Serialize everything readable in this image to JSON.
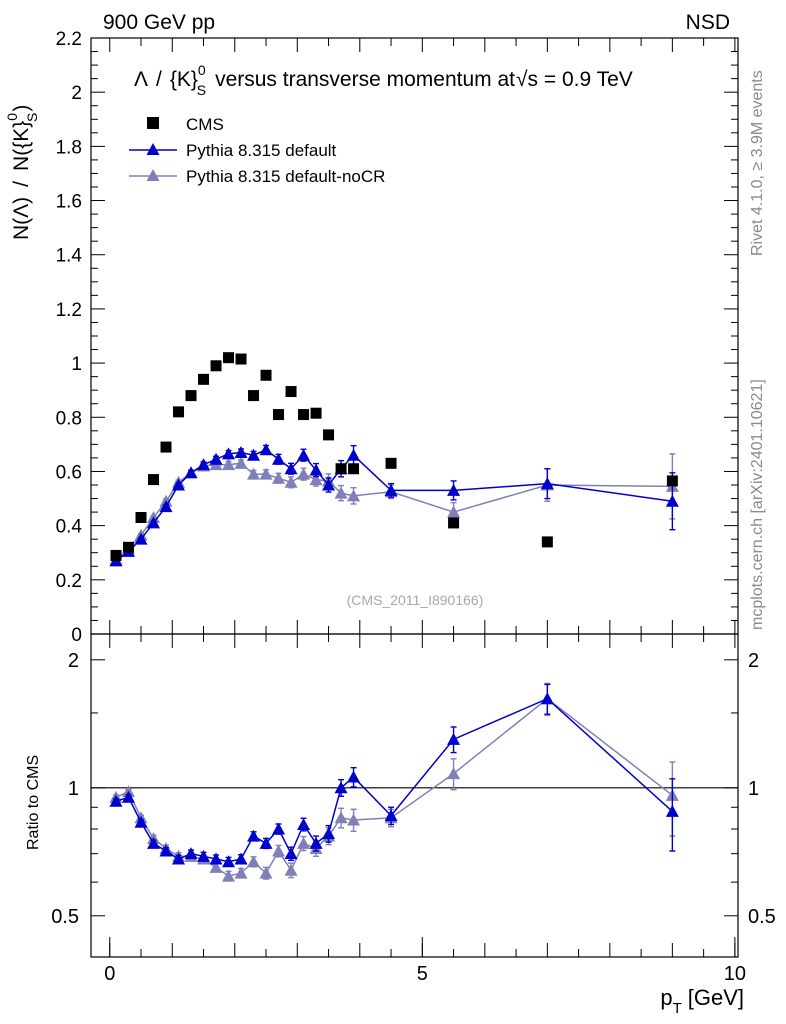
{
  "header": {
    "left": "900 GeV pp",
    "right": "NSD"
  },
  "title": {
    "lambda": "Λ",
    "sep": "/",
    "kshort": "{K}",
    "ksup": "0",
    "ksub": "S",
    "rest": "versus transverse momentum at",
    "sqrt_s": "√s = 0.9 TeV"
  },
  "ylabel_main": {
    "left": "N(Λ)",
    "sep": "/",
    "right": "N({K}",
    "sup": "0",
    "sub": "S",
    "close": ")"
  },
  "ylabel_ratio": "Ratio to CMS",
  "xlabel": {
    "main": "p",
    "sub": "T",
    "unit": "[GeV]"
  },
  "side_labels": {
    "rivet": "Rivet 4.1.0, ≥ 3.9M events",
    "mcplots": "mcplots.cern.ch [arXiv:2401.10621]"
  },
  "watermark": "(CMS_2011_I890166)",
  "colors": {
    "data": "#000000",
    "default": "#0000cc",
    "noCR": "#8080b8",
    "axis": "#000000",
    "side": "#8a8a8a"
  },
  "chart_data": [
    {
      "type": "scatter",
      "panel": "main",
      "xlim": [
        -0.3,
        10.05
      ],
      "ylim": [
        0,
        2.2
      ],
      "yticks": [
        0,
        0.2,
        0.4,
        0.6,
        0.8,
        1,
        1.2,
        1.4,
        1.6,
        1.8,
        2,
        2.2
      ],
      "ytick_labels": [
        "0",
        "0.2",
        "0.4",
        "0.6",
        "0.8",
        "1",
        "1.2",
        "1.4",
        "1.6",
        "1.8",
        "2",
        "2.2"
      ],
      "legend_position": "top-left",
      "series": [
        {
          "name": "CMS",
          "marker": "square",
          "x": [
            0.1,
            0.3,
            0.5,
            0.7,
            0.9,
            1.1,
            1.3,
            1.5,
            1.7,
            1.9,
            2.1,
            2.3,
            2.5,
            2.7,
            2.9,
            3.1,
            3.3,
            3.5,
            3.7,
            3.9,
            4.5,
            5.5,
            7.0,
            9.0
          ],
          "y": [
            0.29,
            0.32,
            0.43,
            0.57,
            0.69,
            0.82,
            0.88,
            0.94,
            0.99,
            1.02,
            1.015,
            0.88,
            0.955,
            0.81,
            0.895,
            0.81,
            0.815,
            0.735,
            0.61,
            0.61,
            0.63,
            0.41,
            0.34,
            0.565
          ],
          "err": [
            0.005,
            0.005,
            0.005,
            0.006,
            0.007,
            0.008,
            0.009,
            0.01,
            0.01,
            0.012,
            0.012,
            0.013,
            0.014,
            0.015,
            0.016,
            0.018,
            0.02,
            0.022,
            0.025,
            0.028,
            0.02,
            0.02,
            0.025,
            0.03
          ]
        },
        {
          "name": "Pythia 8.315 default",
          "marker": "triangle",
          "x": [
            0.1,
            0.3,
            0.5,
            0.7,
            0.9,
            1.1,
            1.3,
            1.5,
            1.7,
            1.9,
            2.1,
            2.3,
            2.5,
            2.7,
            2.9,
            3.1,
            3.3,
            3.5,
            3.7,
            3.9,
            4.5,
            5.5,
            7.0,
            9.0
          ],
          "y": [
            0.27,
            0.305,
            0.35,
            0.41,
            0.47,
            0.55,
            0.595,
            0.625,
            0.645,
            0.665,
            0.67,
            0.66,
            0.68,
            0.645,
            0.61,
            0.66,
            0.605,
            0.55,
            0.61,
            0.66,
            0.53,
            0.53,
            0.555,
            0.49
          ],
          "err": [
            0.004,
            0.004,
            0.005,
            0.006,
            0.007,
            0.008,
            0.009,
            0.01,
            0.011,
            0.012,
            0.013,
            0.014,
            0.016,
            0.018,
            0.02,
            0.022,
            0.024,
            0.026,
            0.03,
            0.035,
            0.025,
            0.035,
            0.055,
            0.105
          ]
        },
        {
          "name": "Pythia 8.315 default-noCR",
          "marker": "triangle",
          "x": [
            0.1,
            0.3,
            0.5,
            0.7,
            0.9,
            1.1,
            1.3,
            1.5,
            1.7,
            1.9,
            2.1,
            2.3,
            2.5,
            2.7,
            2.9,
            3.1,
            3.3,
            3.5,
            3.7,
            3.9,
            4.5,
            5.5,
            7.0,
            9.0
          ],
          "y": [
            0.275,
            0.315,
            0.365,
            0.43,
            0.49,
            0.56,
            0.595,
            0.62,
            0.625,
            0.625,
            0.63,
            0.59,
            0.59,
            0.575,
            0.56,
            0.59,
            0.57,
            0.565,
            0.52,
            0.51,
            0.525,
            0.45,
            0.55,
            0.545
          ],
          "err": [
            0.004,
            0.004,
            0.005,
            0.006,
            0.007,
            0.008,
            0.009,
            0.01,
            0.011,
            0.012,
            0.013,
            0.014,
            0.016,
            0.018,
            0.02,
            0.022,
            0.024,
            0.026,
            0.028,
            0.03,
            0.025,
            0.035,
            0.06,
            0.12
          ]
        }
      ]
    },
    {
      "type": "line",
      "panel": "ratio",
      "xlim": [
        -0.3,
        10.05
      ],
      "ylim": [
        0.4,
        2.3
      ],
      "yscale": "log",
      "yticks": [
        0.5,
        1,
        2
      ],
      "ytick_labels": [
        "0.5",
        "1",
        "2"
      ],
      "xticks": [
        0,
        5,
        10
      ],
      "xtick_labels": [
        "0",
        "5",
        "10"
      ],
      "reference_line": 1,
      "series": [
        {
          "name": "Pythia 8.315 default",
          "x": [
            0.1,
            0.3,
            0.5,
            0.7,
            0.9,
            1.1,
            1.3,
            1.5,
            1.7,
            1.9,
            2.1,
            2.3,
            2.5,
            2.7,
            2.9,
            3.1,
            3.3,
            3.5,
            3.7,
            3.9,
            4.5,
            5.5,
            7.0,
            9.0
          ],
          "y": [
            0.93,
            0.95,
            0.83,
            0.74,
            0.71,
            0.68,
            0.7,
            0.69,
            0.68,
            0.67,
            0.68,
            0.77,
            0.74,
            0.8,
            0.7,
            0.82,
            0.74,
            0.78,
            1.0,
            1.06,
            0.86,
            1.3,
            1.62,
            0.88
          ],
          "err": [
            0.012,
            0.012,
            0.012,
            0.013,
            0.013,
            0.014,
            0.014,
            0.015,
            0.015,
            0.016,
            0.016,
            0.018,
            0.02,
            0.022,
            0.025,
            0.028,
            0.03,
            0.035,
            0.045,
            0.055,
            0.04,
            0.09,
            0.13,
            0.17
          ]
        },
        {
          "name": "Pythia 8.315 default-noCR",
          "x": [
            0.1,
            0.3,
            0.5,
            0.7,
            0.9,
            1.1,
            1.3,
            1.5,
            1.7,
            1.9,
            2.1,
            2.3,
            2.5,
            2.7,
            2.9,
            3.1,
            3.3,
            3.5,
            3.7,
            3.9,
            4.5,
            5.5,
            7.0,
            9.0
          ],
          "y": [
            0.95,
            0.98,
            0.85,
            0.76,
            0.72,
            0.69,
            0.69,
            0.68,
            0.65,
            0.62,
            0.63,
            0.67,
            0.63,
            0.71,
            0.64,
            0.74,
            0.72,
            0.77,
            0.85,
            0.84,
            0.85,
            1.08,
            1.62,
            0.96
          ],
          "err": [
            0.012,
            0.012,
            0.012,
            0.013,
            0.013,
            0.014,
            0.014,
            0.015,
            0.015,
            0.016,
            0.016,
            0.018,
            0.02,
            0.022,
            0.025,
            0.028,
            0.03,
            0.035,
            0.045,
            0.05,
            0.04,
            0.09,
            0.14,
            0.19
          ]
        }
      ]
    }
  ]
}
